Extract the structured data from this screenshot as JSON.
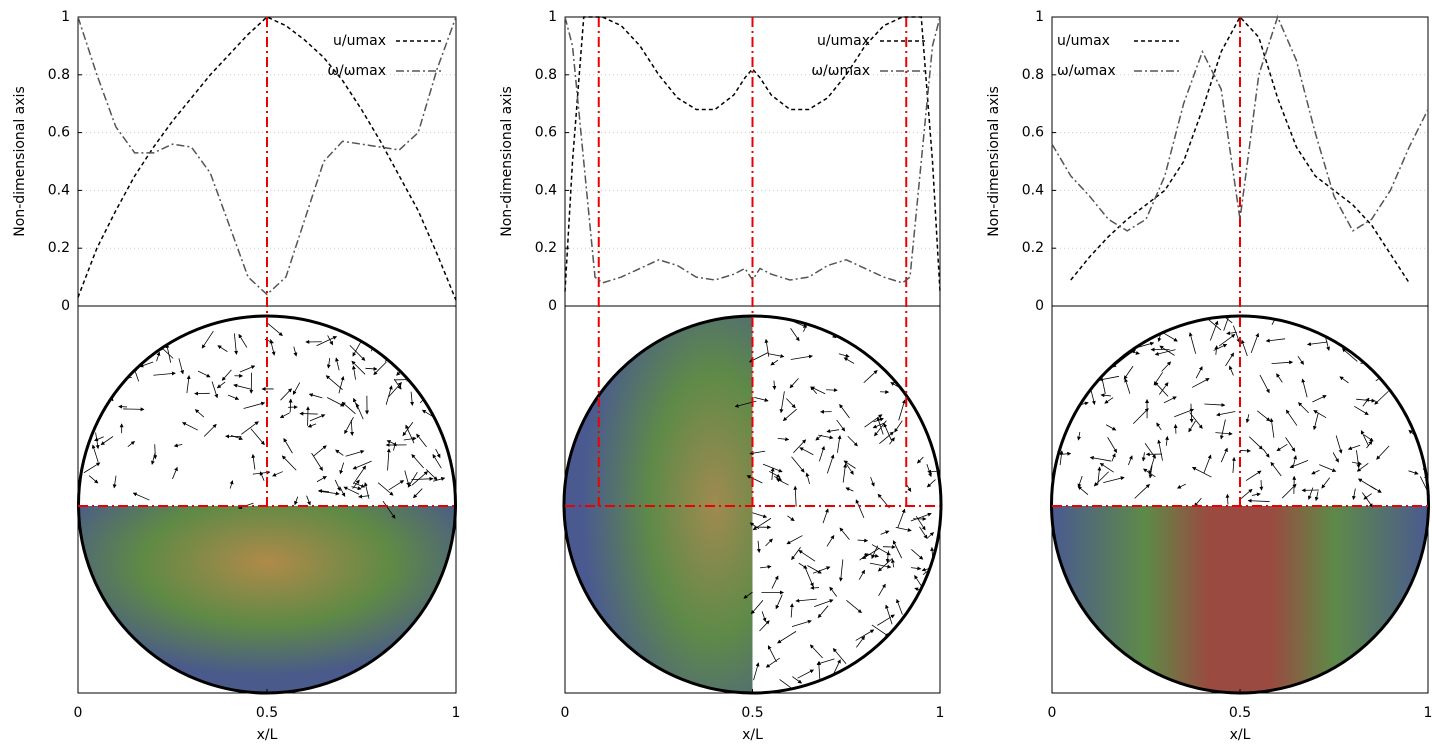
{
  "chart_data": [
    {
      "type": "line",
      "x_label": "x/L",
      "y_label": "Non-dimensional axis",
      "x": [
        0,
        0.05,
        0.1,
        0.15,
        0.2,
        0.25,
        0.3,
        0.35,
        0.4,
        0.45,
        0.5,
        0.55,
        0.6,
        0.65,
        0.7,
        0.75,
        0.8,
        0.85,
        0.9,
        0.95,
        1
      ],
      "series": [
        {
          "name": "u/umax",
          "color": "#000000",
          "dash": "dashed",
          "values": [
            0.03,
            0.2,
            0.33,
            0.45,
            0.55,
            0.64,
            0.72,
            0.8,
            0.87,
            0.94,
            1.0,
            0.97,
            0.92,
            0.86,
            0.78,
            0.68,
            0.57,
            0.45,
            0.33,
            0.18,
            0.02
          ]
        },
        {
          "name": "ω/ωmax",
          "color": "#555555",
          "dash": "dashdot",
          "values": [
            1.0,
            0.8,
            0.62,
            0.53,
            0.53,
            0.56,
            0.55,
            0.46,
            0.28,
            0.1,
            0.04,
            0.1,
            0.3,
            0.5,
            0.57,
            0.56,
            0.55,
            0.54,
            0.6,
            0.82,
            1.0
          ]
        }
      ],
      "xlim": [
        0,
        1
      ],
      "ylim": [
        0,
        1
      ],
      "xticks": [
        0,
        0.5,
        1
      ],
      "yticks": [
        0,
        0.2,
        0.4,
        0.6,
        0.8,
        1
      ],
      "grid": true,
      "legend": "top-right",
      "reference_lines": [
        0.5
      ]
    },
    {
      "type": "line",
      "x_label": "x/L",
      "y_label": "Non-dimensional axis",
      "x": [
        0,
        0.02,
        0.05,
        0.08,
        0.1,
        0.15,
        0.2,
        0.25,
        0.3,
        0.35,
        0.4,
        0.45,
        0.48,
        0.5,
        0.52,
        0.55,
        0.6,
        0.65,
        0.7,
        0.75,
        0.8,
        0.85,
        0.9,
        0.92,
        0.95,
        0.98,
        1
      ],
      "series": [
        {
          "name": "u/umax",
          "color": "#000000",
          "dash": "dashed",
          "values": [
            0.05,
            0.5,
            1.0,
            1.0,
            1.0,
            0.97,
            0.9,
            0.8,
            0.72,
            0.68,
            0.68,
            0.73,
            0.79,
            0.82,
            0.79,
            0.73,
            0.68,
            0.68,
            0.72,
            0.8,
            0.9,
            0.97,
            1.0,
            1.0,
            1.0,
            0.5,
            0.05
          ]
        },
        {
          "name": "ω/ωmax",
          "color": "#555555",
          "dash": "dashdot",
          "values": [
            1.0,
            0.9,
            0.5,
            0.1,
            0.08,
            0.1,
            0.13,
            0.16,
            0.14,
            0.1,
            0.09,
            0.11,
            0.13,
            0.09,
            0.13,
            0.11,
            0.09,
            0.1,
            0.14,
            0.16,
            0.13,
            0.1,
            0.08,
            0.1,
            0.5,
            0.9,
            1.0
          ]
        }
      ],
      "xlim": [
        0,
        1
      ],
      "ylim": [
        0,
        1
      ],
      "xticks": [
        0,
        0.5,
        1
      ],
      "yticks": [
        0,
        0.2,
        0.4,
        0.6,
        0.8,
        1
      ],
      "grid": true,
      "legend": "top-right",
      "reference_lines": [
        0.09,
        0.5,
        0.91
      ]
    },
    {
      "type": "line",
      "x_label": "x/L",
      "y_label": "Non-dimensional axis",
      "x": [
        0,
        0.05,
        0.1,
        0.15,
        0.2,
        0.25,
        0.3,
        0.35,
        0.4,
        0.45,
        0.5,
        0.55,
        0.6,
        0.65,
        0.7,
        0.75,
        0.8,
        0.85,
        0.9,
        0.95,
        1
      ],
      "series": [
        {
          "name": "u/umax",
          "color": "#000000",
          "dash": "dashed",
          "values": [
            null,
            0.09,
            0.17,
            0.24,
            0.3,
            0.35,
            0.4,
            0.5,
            0.68,
            0.88,
            1.0,
            0.93,
            0.72,
            0.55,
            0.45,
            0.4,
            0.35,
            0.28,
            0.18,
            0.08,
            null
          ]
        },
        {
          "name": "ω/ωmax",
          "color": "#555555",
          "dash": "dashdot",
          "values": [
            0.56,
            0.45,
            0.38,
            0.3,
            0.26,
            0.3,
            0.45,
            0.7,
            0.88,
            0.75,
            0.3,
            0.8,
            1.0,
            0.85,
            0.6,
            0.38,
            0.26,
            0.3,
            0.4,
            0.55,
            0.68
          ]
        }
      ],
      "xlim": [
        0,
        1
      ],
      "ylim": [
        0,
        1
      ],
      "xticks": [
        0,
        0.5,
        1
      ],
      "yticks": [
        0,
        0.2,
        0.4,
        0.6,
        0.8,
        1
      ],
      "grid": true,
      "legend": "top-left",
      "reference_lines": [
        0.5
      ]
    }
  ]
}
